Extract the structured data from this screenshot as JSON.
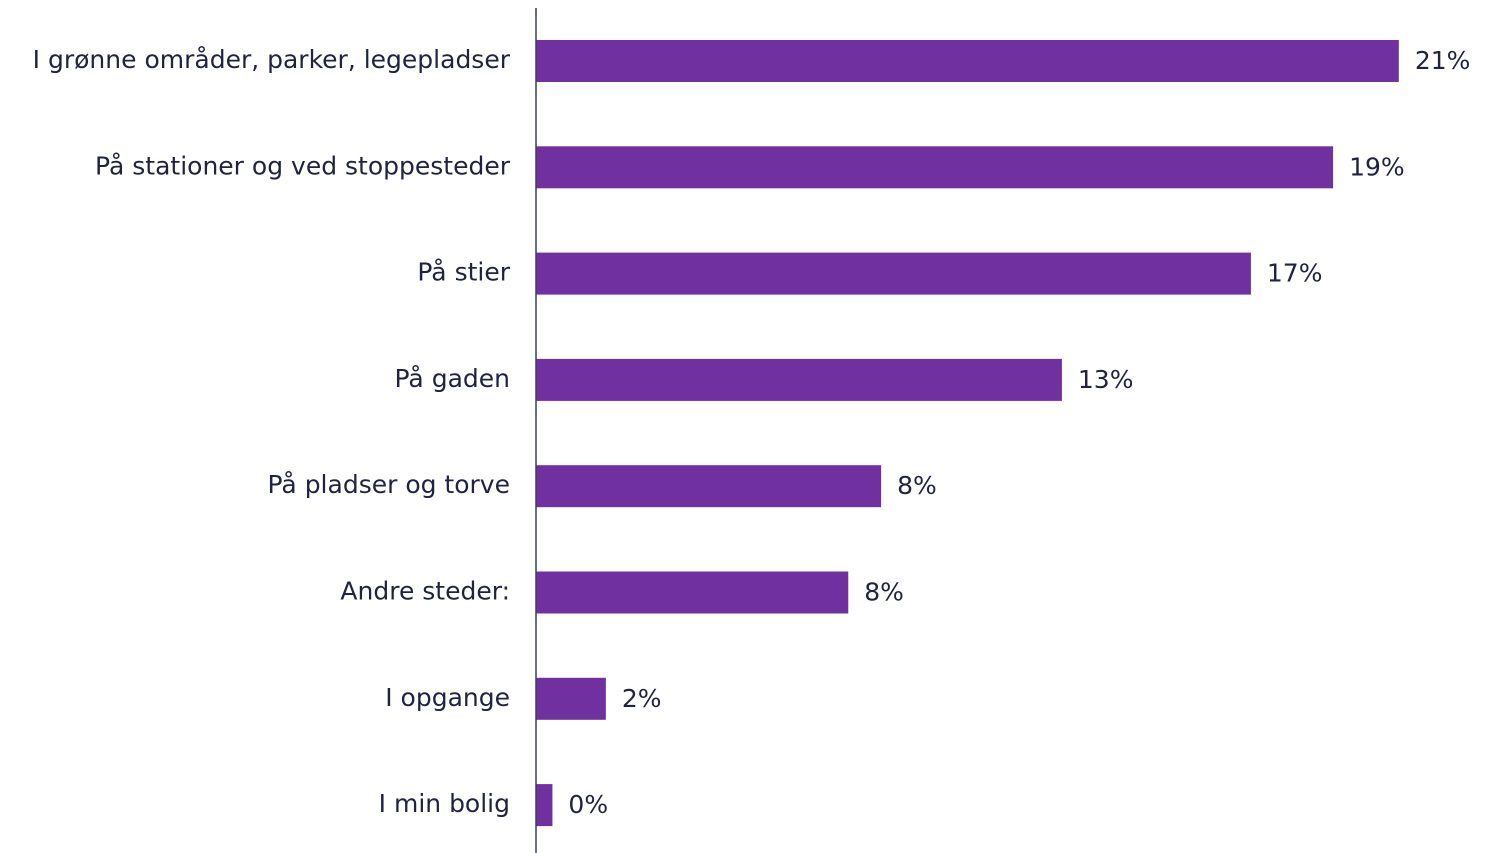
{
  "chart_data": {
    "type": "bar",
    "orientation": "horizontal",
    "categories": [
      "I grønne områder, parker, legepladser",
      "På stationer og ved stoppesteder",
      "På stier",
      "På gaden",
      "På pladser og torve",
      "Andre steder:",
      "I opgange",
      "I min bolig"
    ],
    "values": [
      21,
      19.4,
      17.4,
      12.8,
      8.4,
      7.6,
      1.7,
      0.4
    ],
    "value_labels": [
      "21%",
      "19%",
      "17%",
      "13%",
      "8%",
      "8%",
      "2%",
      "0%"
    ],
    "color": "#7030a0",
    "xlim": [
      0,
      23
    ]
  }
}
